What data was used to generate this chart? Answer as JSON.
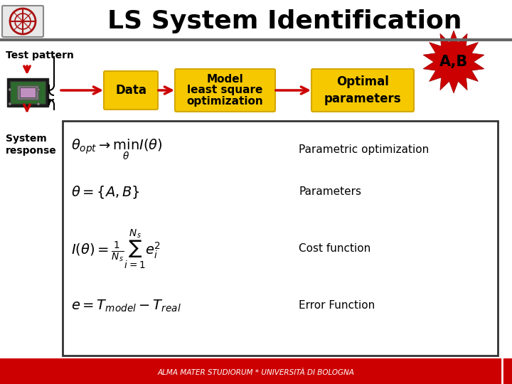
{
  "title": "LS System Identification",
  "title_fontsize": 26,
  "title_color": "#000000",
  "bg_color": "#ffffff",
  "header_line_color": "#666666",
  "red_color": "#cc0000",
  "gold_color": "#f5c800",
  "gold_border": "#d4a800",
  "ab_label": "A,B",
  "footer_bg": "#cc0000",
  "footer_text": "ALMA MATER STUDIORUM * UNIVERSITÀ DI BOLOGNA",
  "footer_color": "#ffffff"
}
